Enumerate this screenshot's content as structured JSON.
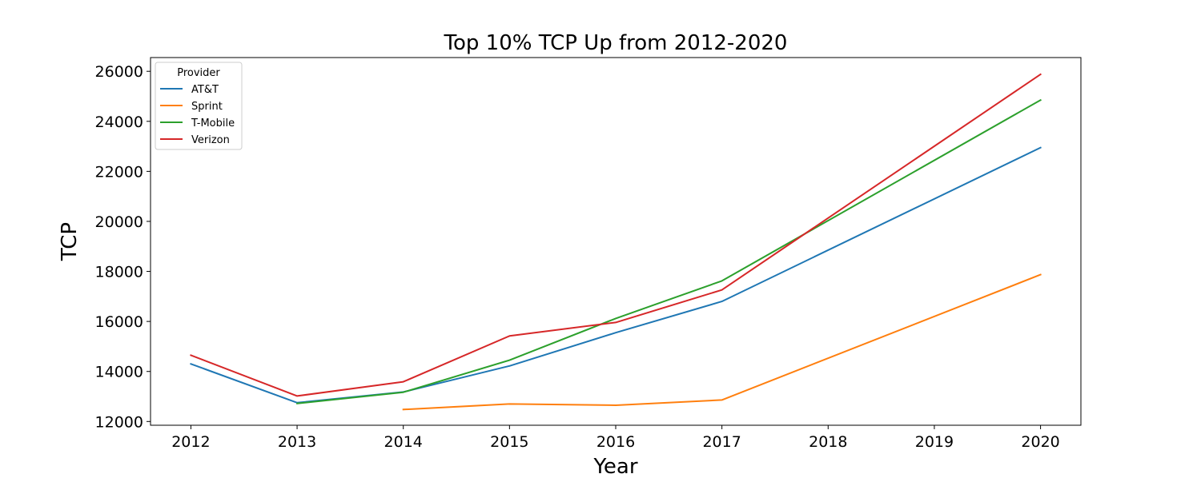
{
  "chart_data": {
    "type": "line",
    "title": "Top 10% TCP Up from 2012-2020",
    "xlabel": "Year",
    "ylabel": "TCP",
    "xlim": [
      2011.62,
      2020.38
    ],
    "ylim": [
      11850,
      26550
    ],
    "xticks": [
      2012,
      2013,
      2014,
      2015,
      2016,
      2017,
      2018,
      2019,
      2020
    ],
    "yticks": [
      12000,
      14000,
      16000,
      18000,
      20000,
      22000,
      24000,
      26000
    ],
    "grid": false,
    "legend": {
      "title": "Provider",
      "placement": "top-left"
    },
    "series": [
      {
        "name": "AT&T",
        "color": "#1f77b4",
        "x": [
          2012,
          2013,
          2014,
          2015,
          2016,
          2017,
          2020
        ],
        "y": [
          14300,
          12750,
          13180,
          14220,
          15550,
          16800,
          22950
        ]
      },
      {
        "name": "Sprint",
        "color": "#ff7f0e",
        "x": [
          2014,
          2015,
          2016,
          2017,
          2020
        ],
        "y": [
          12480,
          12700,
          12650,
          12860,
          17870
        ]
      },
      {
        "name": "T-Mobile",
        "color": "#2ca02c",
        "x": [
          2013,
          2014,
          2015,
          2016,
          2017,
          2020
        ],
        "y": [
          12720,
          13170,
          14450,
          16120,
          17620,
          24850
        ]
      },
      {
        "name": "Verizon",
        "color": "#d62728",
        "x": [
          2012,
          2013,
          2014,
          2015,
          2016,
          2017,
          2020
        ],
        "y": [
          14650,
          13020,
          13590,
          15420,
          15960,
          17260,
          25880
        ]
      }
    ]
  }
}
